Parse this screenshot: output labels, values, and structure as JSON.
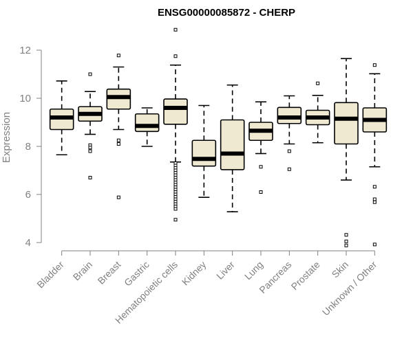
{
  "chart_data": {
    "type": "boxplot",
    "title": "ENSG00000085872 - CHERP",
    "xlabel": "",
    "ylabel": "Expression",
    "ylim": [
      3.8,
      12.9
    ],
    "yticks": [
      4,
      6,
      8,
      10,
      12
    ],
    "box_fill": "#efe9d1",
    "box_stroke": "#000000",
    "median_color": "#000000",
    "categories": [
      "Bladder",
      "Brain",
      "Breast",
      "Gastric",
      "Hematopoietic cells",
      "Kidney",
      "Liver",
      "Lung",
      "Pancreas",
      "Prostate",
      "Skin",
      "Unknown / Other"
    ],
    "boxes": [
      {
        "name": "Bladder",
        "whisker_low": 7.65,
        "q1": 8.7,
        "median": 9.2,
        "q3": 9.55,
        "whisker_high": 10.72,
        "outliers": []
      },
      {
        "name": "Brain",
        "whisker_low": 8.5,
        "q1": 9.05,
        "median": 9.35,
        "q3": 9.65,
        "whisker_high": 10.28,
        "outliers": [
          11.0,
          8.05,
          7.95,
          7.8,
          6.7
        ]
      },
      {
        "name": "Breast",
        "whisker_low": 8.7,
        "q1": 9.55,
        "median": 10.05,
        "q3": 10.38,
        "whisker_high": 11.3,
        "outliers": [
          11.78,
          8.25,
          8.1,
          5.88
        ]
      },
      {
        "name": "Gastric",
        "whisker_low": 8.0,
        "q1": 8.62,
        "median": 8.85,
        "q3": 9.35,
        "whisker_high": 9.6,
        "outliers": []
      },
      {
        "name": "Hematopoietic cells",
        "whisker_low": 7.35,
        "q1": 8.92,
        "median": 9.6,
        "q3": 9.97,
        "whisker_high": 11.38,
        "outliers": [
          12.85,
          11.75,
          7.3,
          7.2,
          7.1,
          7.0,
          6.9,
          6.8,
          6.7,
          6.6,
          6.5,
          6.4,
          6.3,
          6.2,
          6.1,
          6.0,
          5.9,
          5.8,
          5.7,
          5.6,
          5.5,
          5.4,
          4.95
        ]
      },
      {
        "name": "Kidney",
        "whisker_low": 5.88,
        "q1": 7.18,
        "median": 7.48,
        "q3": 8.25,
        "whisker_high": 9.7,
        "outliers": []
      },
      {
        "name": "Liver",
        "whisker_low": 5.28,
        "q1": 7.03,
        "median": 7.7,
        "q3": 9.1,
        "whisker_high": 10.55,
        "outliers": []
      },
      {
        "name": "Lung",
        "whisker_low": 7.7,
        "q1": 8.25,
        "median": 8.65,
        "q3": 9.0,
        "whisker_high": 9.85,
        "outliers": [
          7.15,
          6.1
        ]
      },
      {
        "name": "Pancreas",
        "whisker_low": 8.1,
        "q1": 8.95,
        "median": 9.2,
        "q3": 9.62,
        "whisker_high": 10.1,
        "outliers": [
          7.8,
          7.05
        ]
      },
      {
        "name": "Prostate",
        "whisker_low": 8.15,
        "q1": 8.9,
        "median": 9.2,
        "q3": 9.5,
        "whisker_high": 10.12,
        "outliers": [
          10.62
        ]
      },
      {
        "name": "Skin",
        "whisker_low": 6.6,
        "q1": 8.1,
        "median": 9.15,
        "q3": 9.82,
        "whisker_high": 11.65,
        "outliers": [
          4.32,
          4.05,
          3.88
        ]
      },
      {
        "name": "Unknown / Other",
        "whisker_low": 7.15,
        "q1": 8.6,
        "median": 9.1,
        "q3": 9.6,
        "whisker_high": 11.02,
        "outliers": [
          11.38,
          6.32,
          5.8,
          5.68,
          3.92
        ]
      }
    ]
  }
}
